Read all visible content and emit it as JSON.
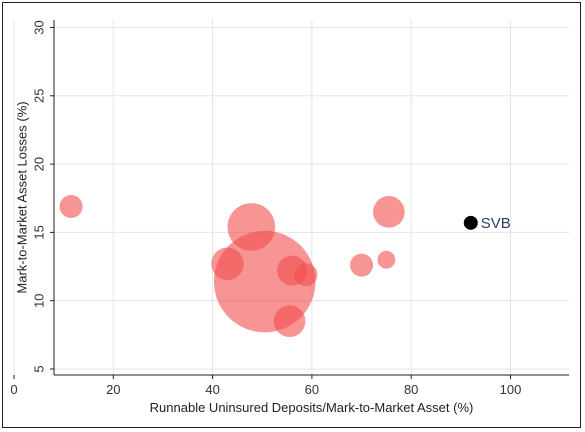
{
  "chart_data": {
    "type": "scatter",
    "xlabel": "Runnable Uninsured Deposits/Mark-to-Market Asset (%)",
    "ylabel": "Mark-to-Market Asset Losses (%)",
    "xlim": [
      0,
      100
    ],
    "ylim": [
      5,
      30
    ],
    "x_ticks": [
      0,
      20,
      40,
      60,
      80,
      100
    ],
    "y_ticks": [
      5,
      10,
      15,
      20,
      25,
      30
    ],
    "grid": true,
    "bubble_color": "#f24d4d",
    "highlight_color": "#000000",
    "points": [
      {
        "x": 11.5,
        "y": 16.9,
        "size": 1.0
      },
      {
        "x": 47.8,
        "y": 15.4,
        "size": 4.3
      },
      {
        "x": 43.0,
        "y": 12.7,
        "size": 2.0
      },
      {
        "x": 50.5,
        "y": 11.4,
        "size": 19.5
      },
      {
        "x": 56.0,
        "y": 12.2,
        "size": 1.7
      },
      {
        "x": 58.8,
        "y": 11.9,
        "size": 1.0
      },
      {
        "x": 55.5,
        "y": 8.5,
        "size": 1.9
      },
      {
        "x": 70.0,
        "y": 12.6,
        "size": 1.0
      },
      {
        "x": 75.5,
        "y": 16.5,
        "size": 1.9
      },
      {
        "x": 75.0,
        "y": 13.0,
        "size": 0.6
      }
    ],
    "highlight": {
      "label": "SVB",
      "x": 92.0,
      "y": 15.7
    }
  }
}
